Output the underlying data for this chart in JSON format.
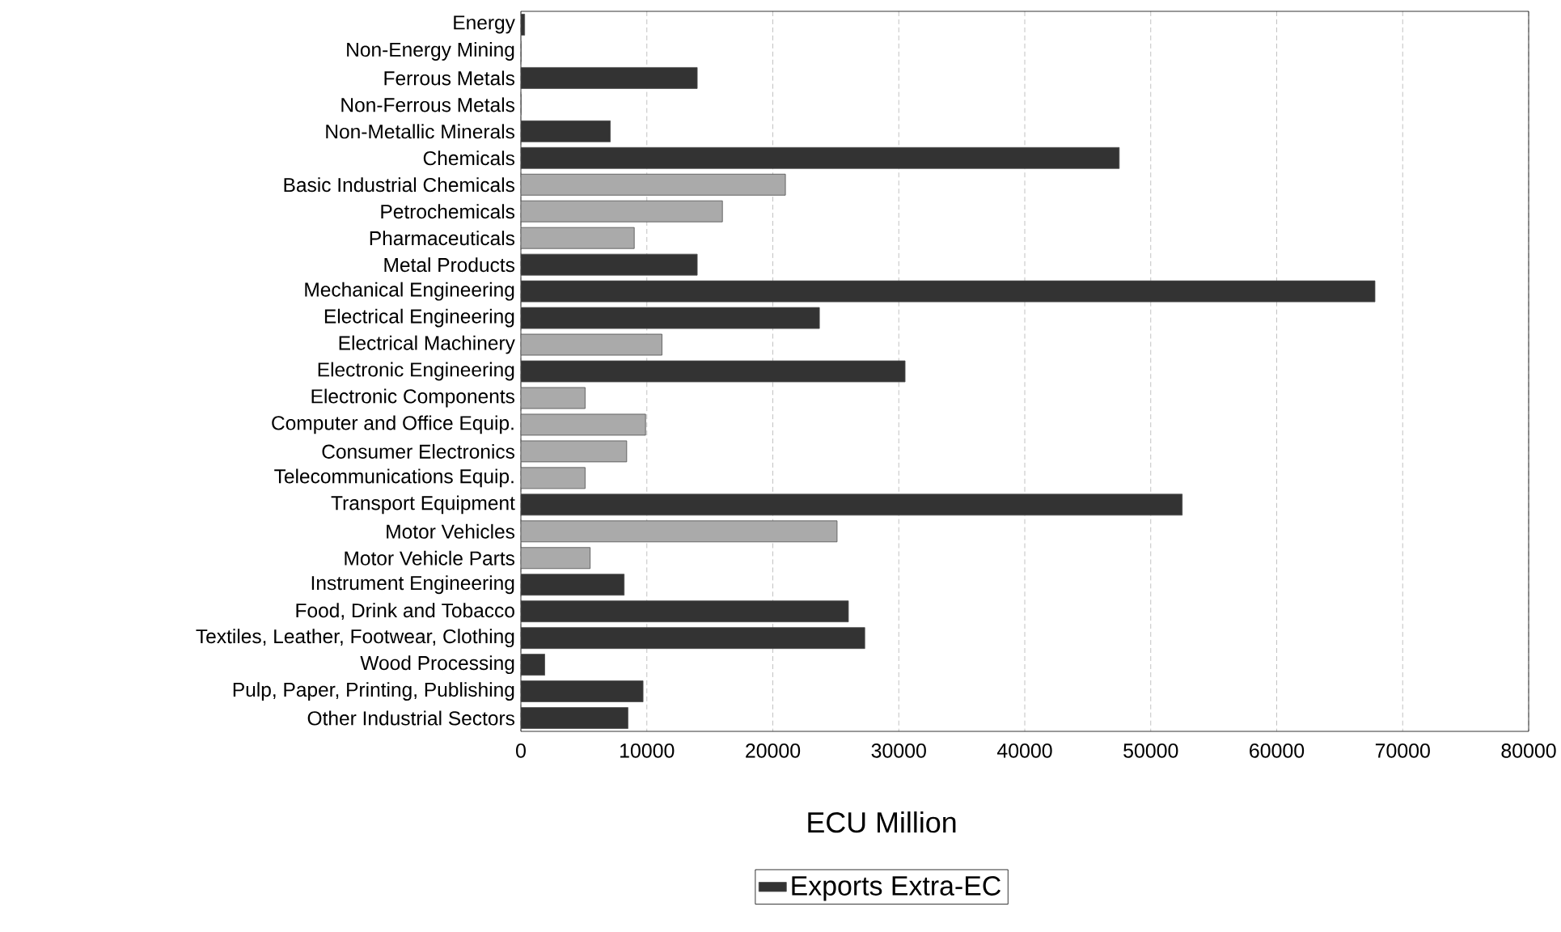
{
  "chart_data": {
    "type": "bar",
    "orientation": "horizontal",
    "xlabel": "ECU Million",
    "categories": [
      "Energy",
      "Non-Energy Mining",
      "Ferrous Metals",
      "Non-Ferrous Metals",
      "Non-Metallic Minerals",
      "Chemicals",
      "Basic Industrial Chemicals",
      "Petrochemicals",
      "Pharmaceuticals",
      "Metal Products",
      "Mechanical Engineering",
      "Electrical Engineering",
      "Electrical Machinery",
      "Electronic Engineering",
      "Electronic Components",
      "Computer and Office Equip.",
      "Consumer Electronics",
      "Telecommunications Equip.",
      "Transport Equipment",
      "Motor Vehicles",
      "Motor Vehicle Parts",
      "Instrument Engineering",
      "Food, Drink and Tobacco",
      "Textiles, Leather, Footwear, Clothing",
      "Wood Processing",
      "Pulp, Paper, Printing, Publishing",
      "Other Industrial Sectors"
    ],
    "series": [
      {
        "name": "Exports Extra-EC",
        "color": "#333333",
        "colors": [
          "#333333",
          "#333333",
          "#333333",
          "#333333",
          "#333333",
          "#333333",
          "#aaaaaa",
          "#aaaaaa",
          "#aaaaaa",
          "#333333",
          "#333333",
          "#333333",
          "#aaaaaa",
          "#333333",
          "#aaaaaa",
          "#aaaaaa",
          "#aaaaaa",
          "#aaaaaa",
          "#333333",
          "#aaaaaa",
          "#aaaaaa",
          "#333333",
          "#333333",
          "#333333",
          "#333333",
          "#333333",
          "#333333"
        ],
        "values": [
          300,
          0,
          14000,
          0,
          7100,
          47500,
          21000,
          16000,
          9000,
          14000,
          67800,
          23700,
          11200,
          30500,
          5100,
          9900,
          8400,
          5100,
          52500,
          25100,
          5500,
          8200,
          26000,
          27300,
          1900,
          9700,
          8500
        ]
      }
    ],
    "xlim": [
      0,
      80000
    ],
    "xticks": [
      0,
      10000,
      20000,
      30000,
      40000,
      50000,
      60000,
      70000,
      80000
    ],
    "grid": "x",
    "legend": "bottom"
  }
}
